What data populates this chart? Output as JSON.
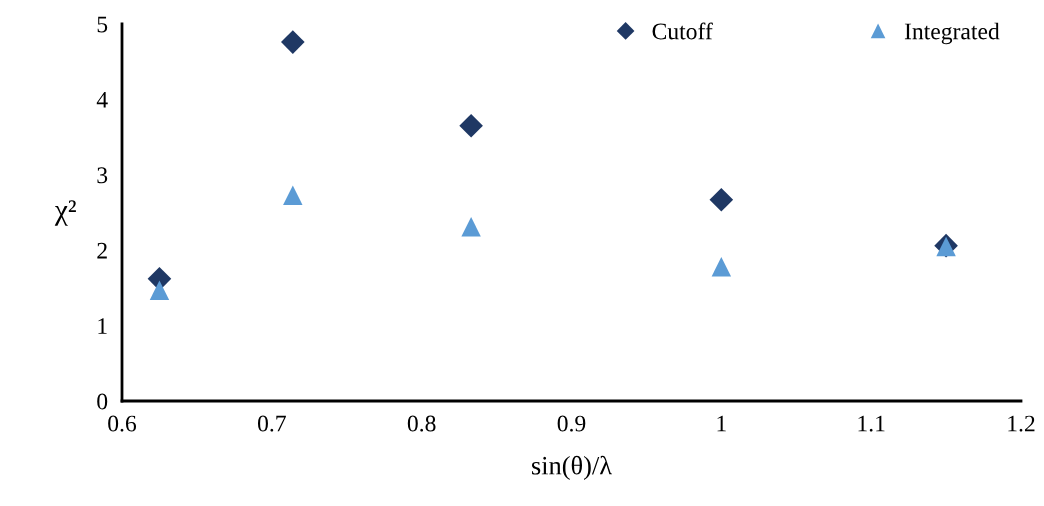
{
  "chart_data": {
    "type": "scatter",
    "xlabel": "sin(θ)/λ",
    "ylabel": "χ²",
    "xlim": [
      0.6,
      1.2
    ],
    "xticks": [
      0.6,
      0.7,
      0.8,
      0.9,
      1,
      1.1,
      1.2
    ],
    "ylim": [
      0,
      5
    ],
    "yticks": [
      0,
      1,
      2,
      3,
      4,
      5
    ],
    "grid": false,
    "legend": "top right",
    "series": [
      {
        "name": "Cutoff",
        "color": "#1f3864",
        "marker": "diamond",
        "x": [
          0.625,
          0.714,
          0.833,
          1.0,
          1.15
        ],
        "values": [
          1.62,
          4.76,
          3.65,
          2.67,
          2.06
        ]
      },
      {
        "name": "Integrated",
        "color": "#5b9bd5",
        "marker": "triangle",
        "x": [
          0.625,
          0.714,
          0.833,
          1.0,
          1.15
        ],
        "values": [
          1.47,
          2.73,
          2.31,
          1.78,
          2.05
        ]
      }
    ]
  }
}
